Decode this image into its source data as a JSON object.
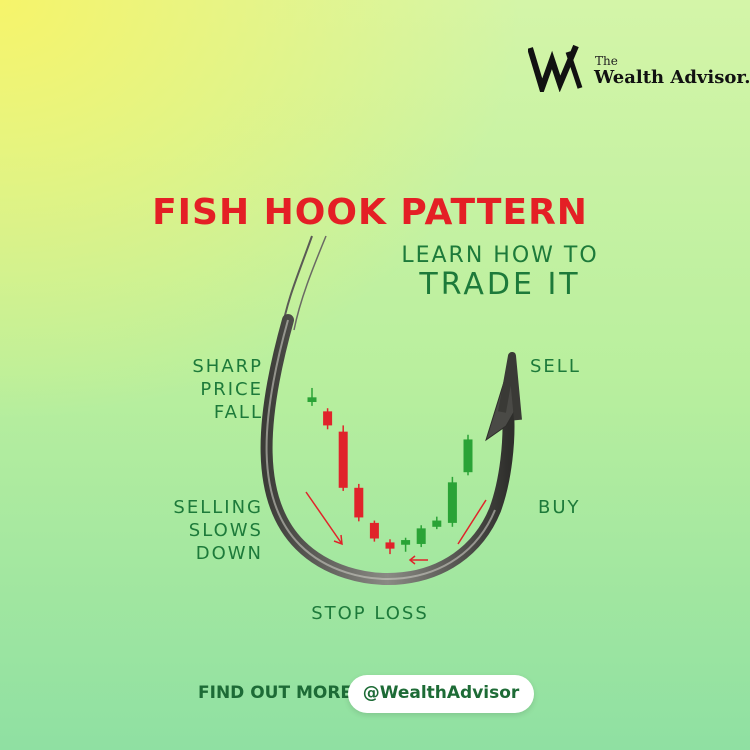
{
  "brand": {
    "the": "The",
    "name": "Wealth Advisor.",
    "mark_icon": "wa-monogram-logo"
  },
  "title": "FISH HOOK PATTERN",
  "subtitle_line1": "LEARN HOW TO",
  "subtitle_line2": "TRADE IT",
  "labels": {
    "sharp_price_fall": "SHARP\nPRICE\nFALL",
    "selling_slows_down": "SELLING\nSLOWS\nDOWN",
    "sell": "SELL",
    "buy": "BUY",
    "stop_loss": "STOP LOSS"
  },
  "cta": {
    "text": "FIND OUT MORE",
    "handle": "@WealthAdvisor"
  },
  "colors": {
    "title": "#e41f25",
    "accent_green": "#1d7a3a",
    "bear_candle": "#e0232a",
    "bull_candle": "#2aa336",
    "hook": "#4a4a46"
  },
  "candles": [
    {
      "type": "bull",
      "open": 100,
      "close": 106,
      "high": 118,
      "low": 95
    },
    {
      "type": "bear",
      "open": 88,
      "close": 70,
      "high": 92,
      "low": 65
    },
    {
      "type": "bear",
      "open": 62,
      "close": -10,
      "high": 70,
      "low": -14
    },
    {
      "type": "bear",
      "open": -10,
      "close": -48,
      "high": -5,
      "low": -53
    },
    {
      "type": "bear",
      "open": -55,
      "close": -75,
      "high": -52,
      "low": -79
    },
    {
      "type": "bear",
      "open": -80,
      "close": -88,
      "high": -76,
      "low": -95
    },
    {
      "type": "bull",
      "open": -83,
      "close": -77,
      "high": -74,
      "low": -92
    },
    {
      "type": "bull",
      "open": -82,
      "close": -62,
      "high": -58,
      "low": -86
    },
    {
      "type": "bull",
      "open": -60,
      "close": -52,
      "high": -47,
      "low": -63
    },
    {
      "type": "bull",
      "open": -55,
      "close": -3,
      "high": 4,
      "low": -60
    },
    {
      "type": "bull",
      "open": 10,
      "close": 52,
      "high": 58,
      "low": 6
    }
  ]
}
